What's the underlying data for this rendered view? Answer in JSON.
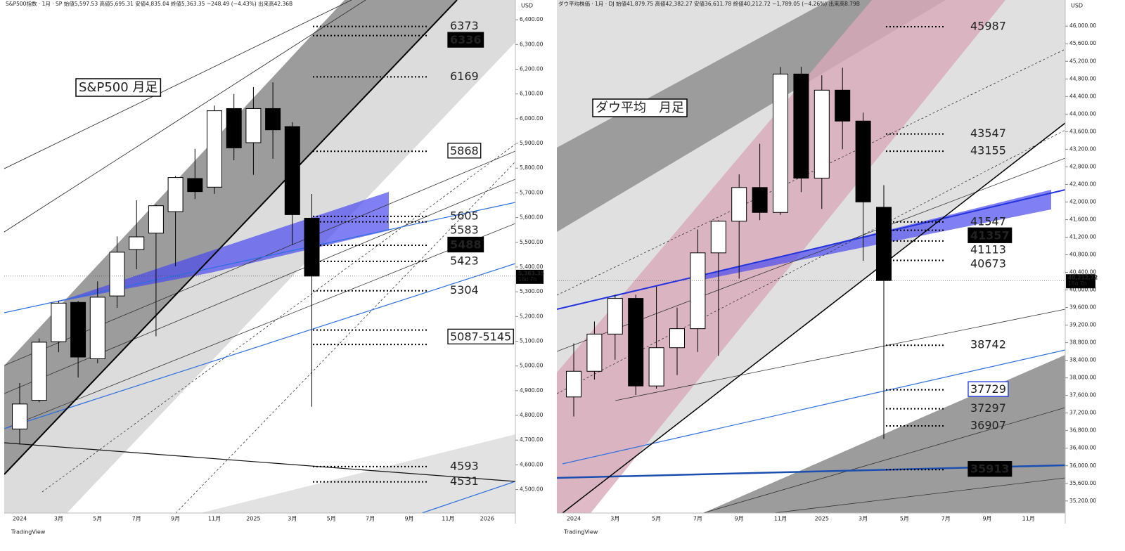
{
  "chart_data": [
    {
      "type": "candlestick",
      "header": "S&P500指数 · 1月 · SP  始値5,597.53 高値5,695.31 安値4,835.04 終値5,363.35 −248.49 (−4.43%) 出来高42.36B",
      "title": "S&P500 月足",
      "unit": "USD",
      "watermark": "TradingView",
      "categories": [
        "2024",
        null,
        "3月",
        null,
        "5月",
        null,
        "7月",
        null,
        "9月",
        null,
        "11月",
        null,
        "2025",
        null,
        "3月",
        null,
        "5月",
        null,
        "7月",
        null,
        "9月",
        null,
        "11月",
        null,
        "2026"
      ],
      "open": [
        4745,
        4861,
        5098,
        5257,
        5029,
        5283,
        5471,
        5537,
        5624,
        5758,
        5723,
        6041,
        5903,
        6041,
        5968,
        5597.53,
        null,
        null,
        null,
        null,
        null,
        null,
        null,
        null,
        null
      ],
      "high": [
        4931,
        5111,
        5264,
        5263,
        5342,
        5524,
        5670,
        5652,
        5768,
        5878,
        6053,
        6100,
        6128,
        6147,
        5986,
        5695.31,
        null,
        null,
        null,
        null,
        null,
        null,
        null,
        null,
        null
      ],
      "low": [
        4682,
        4853,
        5056,
        4953,
        5011,
        5235,
        5391,
        5120,
        5403,
        5675,
        5696,
        5832,
        5773,
        5838,
        5489,
        4835.04,
        null,
        null,
        null,
        null,
        null,
        null,
        null,
        null,
        null
      ],
      "close": [
        4846,
        5096,
        5254,
        5036,
        5278,
        5460,
        5522,
        5648,
        5762,
        5705,
        6032,
        5882,
        6041,
        5955,
        5612,
        5363.35,
        null,
        null,
        null,
        null,
        null,
        null,
        null,
        null,
        null
      ],
      "up_color": "#ffffff",
      "down_color": "#000000",
      "ylim": [
        4405,
        6480
      ],
      "yticks": [
        {
          "value": 4500,
          "label": "4,500.00"
        },
        {
          "value": 4600,
          "label": "4,600.00"
        },
        {
          "value": 4700,
          "label": "4,700.00"
        },
        {
          "value": 4800,
          "label": "4,800.00"
        },
        {
          "value": 4900,
          "label": "4,900.00"
        },
        {
          "value": 5000,
          "label": "5,000.00"
        },
        {
          "value": 5100,
          "label": "5,100.00"
        },
        {
          "value": 5200,
          "label": "5,200.00"
        },
        {
          "value": 5300,
          "label": "5,300.00"
        },
        {
          "value": 5400,
          "label": "5,400.00"
        },
        {
          "value": 5500,
          "label": "5,500.00"
        },
        {
          "value": 5600,
          "label": "5,600.00"
        },
        {
          "value": 5700,
          "label": "5,700.00"
        },
        {
          "value": 5800,
          "label": "5,800.00"
        },
        {
          "value": 5900,
          "label": "5,900.00"
        },
        {
          "value": 6000,
          "label": "6,000.00"
        },
        {
          "value": 6100,
          "label": "6,100.00"
        },
        {
          "value": 6200,
          "label": "6,200.00"
        },
        {
          "value": 6300,
          "label": "6,300.00"
        },
        {
          "value": 6400,
          "label": "6,400.00"
        }
      ],
      "levels": [
        {
          "value": 6373,
          "style": "plain"
        },
        {
          "value": 6336,
          "style": "inverse"
        },
        {
          "value": 6169,
          "style": "plain"
        },
        {
          "value": 5868,
          "style": "box"
        },
        {
          "value": 5605,
          "style": "plain"
        },
        {
          "value": 5583,
          "style": "plain"
        },
        {
          "value": 5488,
          "style": "inverse"
        },
        {
          "value": 5423,
          "style": "plain"
        },
        {
          "value": 5304,
          "style": "plain"
        },
        {
          "label": "5087-5145",
          "values": [
            5145,
            5087
          ],
          "style": "box"
        },
        {
          "value": 4593,
          "style": "plain"
        },
        {
          "value": 4531,
          "style": "plain"
        }
      ],
      "last_price": {
        "value": 5363.35,
        "label": "5,363.35"
      },
      "countdown": "18d 7h"
    },
    {
      "type": "candlestick",
      "header": "ダウ平均株価 · 1月 · DJ  始値41,879.75 高値42,382.27 安値36,611.78 終値40,212.72 −1,789.05 (−4.26%) 出来高8.79B",
      "title": "ダウ平均　月足",
      "unit": "USD",
      "watermark": "TradingView",
      "categories": [
        "2024",
        null,
        "3月",
        null,
        "5月",
        null,
        "7月",
        null,
        "9月",
        null,
        "11月",
        null,
        "2025",
        null,
        "3月",
        null,
        "5月",
        null,
        "7月",
        null,
        "9月",
        null,
        "11月",
        null
      ],
      "open": [
        37566,
        38150,
        38996,
        39807,
        37816,
        38686,
        39119,
        40843,
        41563,
        42330,
        41763,
        44911,
        42544,
        44544,
        43841,
        41879.75,
        null,
        null,
        null,
        null,
        null,
        null,
        null,
        null
      ],
      "high": [
        38783,
        39282,
        39890,
        39890,
        40077,
        39599,
        41376,
        41585,
        42628,
        43325,
        45071,
        45074,
        44882,
        45054,
        44034,
        42382.27,
        null,
        null,
        null,
        null,
        null,
        null,
        null,
        null
      ],
      "low": [
        37122,
        37960,
        38414,
        37611,
        37754,
        38064,
        38589,
        38499,
        40256,
        41588,
        41708,
        42225,
        41844,
        43201,
        40662,
        36611.78,
        null,
        null,
        null,
        null,
        null,
        null,
        null,
        null
      ],
      "close": [
        38150,
        38996,
        39807,
        37816,
        38686,
        39119,
        40843,
        41563,
        42330,
        41763,
        44911,
        42544,
        44544,
        43841,
        42002,
        40212.72,
        null,
        null,
        null,
        null,
        null,
        null,
        null,
        null
      ],
      "up_color": "#ffffff",
      "down_color": "#000000",
      "ylim": [
        34925,
        46595
      ],
      "yticks": [
        {
          "value": 35200,
          "label": "35,200.00"
        },
        {
          "value": 35600,
          "label": "35,600.00"
        },
        {
          "value": 36000,
          "label": "36,000.00"
        },
        {
          "value": 36400,
          "label": "36,400.00"
        },
        {
          "value": 36800,
          "label": "36,800.00"
        },
        {
          "value": 37200,
          "label": "37,200.00"
        },
        {
          "value": 37600,
          "label": "37,600.00"
        },
        {
          "value": 38000,
          "label": "38,000.00"
        },
        {
          "value": 38400,
          "label": "38,400.00"
        },
        {
          "value": 38800,
          "label": "38,800.00"
        },
        {
          "value": 39200,
          "label": "39,200.00"
        },
        {
          "value": 39600,
          "label": "39,600.00"
        },
        {
          "value": 40000,
          "label": "40,000.00"
        },
        {
          "value": 40400,
          "label": "40,400.00"
        },
        {
          "value": 40800,
          "label": "40,800.00"
        },
        {
          "value": 41200,
          "label": "41,200.00"
        },
        {
          "value": 41600,
          "label": "41,600.00"
        },
        {
          "value": 42000,
          "label": "42,000.00"
        },
        {
          "value": 42400,
          "label": "42,400.00"
        },
        {
          "value": 42800,
          "label": "42,800.00"
        },
        {
          "value": 43200,
          "label": "43,200.00"
        },
        {
          "value": 43600,
          "label": "43,600.00"
        },
        {
          "value": 44000,
          "label": "44,000.00"
        },
        {
          "value": 44400,
          "label": "44,400.00"
        },
        {
          "value": 44800,
          "label": "44,800.00"
        },
        {
          "value": 45200,
          "label": "45,200.00"
        },
        {
          "value": 45600,
          "label": "45,600.00"
        },
        {
          "value": 46000,
          "label": "46,000.00"
        }
      ],
      "levels": [
        {
          "value": 45987,
          "style": "plain"
        },
        {
          "value": 43547,
          "style": "plain"
        },
        {
          "value": 43155,
          "style": "plain"
        },
        {
          "value": 41547,
          "style": "plain"
        },
        {
          "value": 41357,
          "style": "inverse"
        },
        {
          "value": 41113,
          "style": "plain"
        },
        {
          "value": 40673,
          "style": "plain"
        },
        {
          "value": 38742,
          "style": "plain"
        },
        {
          "value": 37729,
          "style": "blue-box"
        },
        {
          "value": 37297,
          "style": "plain"
        },
        {
          "value": 36907,
          "style": "plain"
        },
        {
          "value": 35913,
          "style": "inverse"
        }
      ],
      "last_price": {
        "value": 40212.72,
        "label": "40,212.72"
      },
      "countdown": "18d 7h"
    }
  ]
}
